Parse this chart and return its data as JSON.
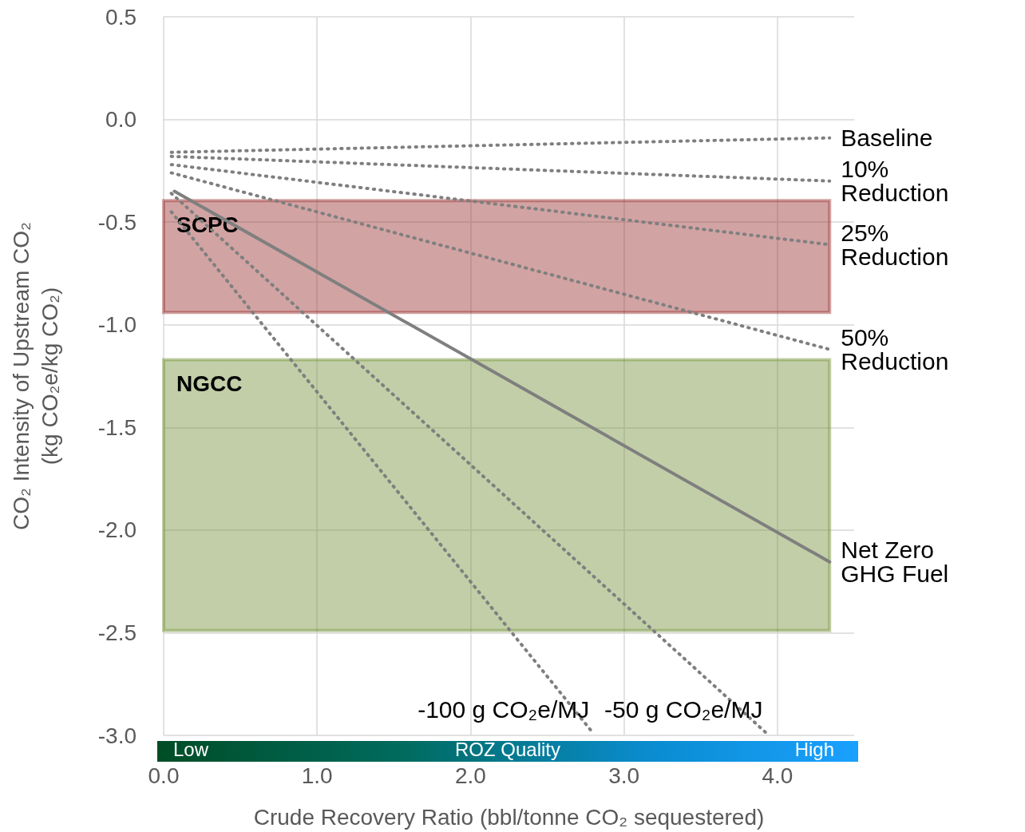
{
  "chart_data": {
    "type": "line",
    "xlabel": "Crude Recovery Ratio (bbl/tonne CO₂ sequestered)",
    "ylabel": "CO₂ Intensity of Upstream CO₂\n(kg CO₂e/kg CO₂)",
    "xlim": [
      0,
      4.5
    ],
    "xticks": [
      {
        "value": 0,
        "label": "0.0"
      },
      {
        "value": 1,
        "label": "1.0"
      },
      {
        "value": 2,
        "label": "2.0"
      },
      {
        "value": 3,
        "label": "3.0"
      },
      {
        "value": 4,
        "label": "4.0"
      }
    ],
    "ylim": [
      -3,
      0.5
    ],
    "yticks": [
      {
        "value": -3,
        "label": "-3.0"
      },
      {
        "value": -2.5,
        "label": "-2.5"
      },
      {
        "value": -2,
        "label": "-2.0"
      },
      {
        "value": -1.5,
        "label": "-1.5"
      },
      {
        "value": -1,
        "label": "-1.0"
      },
      {
        "value": -0.5,
        "label": "-0.5"
      },
      {
        "value": 0,
        "label": "0.0"
      },
      {
        "value": 0.5,
        "label": "0.5"
      }
    ],
    "grid": true,
    "legend": false,
    "marker": "none",
    "series": [
      {
        "name": "Baseline",
        "color": "#7f7f7f",
        "line_style": "dotted",
        "x": [
          0.05,
          4.34
        ],
        "values": [
          -0.16,
          -0.09
        ]
      },
      {
        "name": "10% Reduction",
        "color": "#7f7f7f",
        "line_style": "dotted",
        "x": [
          0.05,
          4.34
        ],
        "values": [
          -0.18,
          -0.3
        ]
      },
      {
        "name": "25% Reduction",
        "color": "#7f7f7f",
        "line_style": "dotted",
        "x": [
          0.05,
          4.34
        ],
        "values": [
          -0.22,
          -0.61
        ]
      },
      {
        "name": "50% Reduction",
        "color": "#7f7f7f",
        "line_style": "dotted",
        "x": [
          0.05,
          4.34
        ],
        "values": [
          -0.26,
          -1.12
        ]
      },
      {
        "name": "-100 g CO₂e/MJ",
        "color": "#7f7f7f",
        "line_style": "dotted",
        "x": [
          0.05,
          2.8
        ],
        "values": [
          -0.45,
          -2.99
        ]
      },
      {
        "name": "-50 g CO₂e/MJ",
        "color": "#7f7f7f",
        "line_style": "dotted",
        "x": [
          0.05,
          3.93
        ],
        "values": [
          -0.36,
          -2.99
        ]
      },
      {
        "name": "Net Zero GHG Fuel",
        "color": "#7f7f7f",
        "line_style": "solid",
        "x": [
          0.07,
          4.34
        ],
        "values": [
          -0.35,
          -2.155
        ]
      }
    ],
    "bands": [
      {
        "axis": "y",
        "from": -0.395,
        "to": -0.94,
        "label": "SCPC",
        "color": "#9b3333"
      },
      {
        "axis": "y",
        "from": -1.17,
        "to": -2.49,
        "label": "NGCC",
        "color": "#76923c"
      }
    ],
    "annotations": [
      "Low",
      "ROZ Quality",
      "High"
    ]
  }
}
